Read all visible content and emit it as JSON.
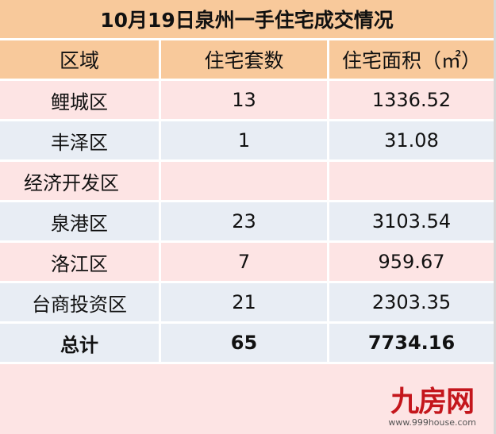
{
  "title": "10月19日泉州一手住宅成交情况",
  "headers": [
    "区域",
    "住宅套数",
    "住宅面积（㎡）"
  ],
  "rows": [
    {
      "district": "鲤城区",
      "units": "13",
      "area": "1336.52"
    },
    {
      "district": "丰泽区",
      "units": "1",
      "area": "31.08"
    },
    {
      "district": "经济开发区",
      "units": "",
      "area": ""
    },
    {
      "district": "泉港区",
      "units": "23",
      "area": "3103.54"
    },
    {
      "district": "洛江区",
      "units": "7",
      "area": "959.67"
    },
    {
      "district": "台商投资区",
      "units": "21",
      "area": "2303.35"
    }
  ],
  "total": {
    "label": "总计",
    "units": "65",
    "area": "7734.16"
  },
  "watermark": {
    "logo": "九房网",
    "url": "www.999house.com"
  },
  "colors": {
    "header": "#f8c99b",
    "row_pink": "#fde4e4",
    "row_blue": "#e8edf4",
    "logo": "#c4161c"
  }
}
